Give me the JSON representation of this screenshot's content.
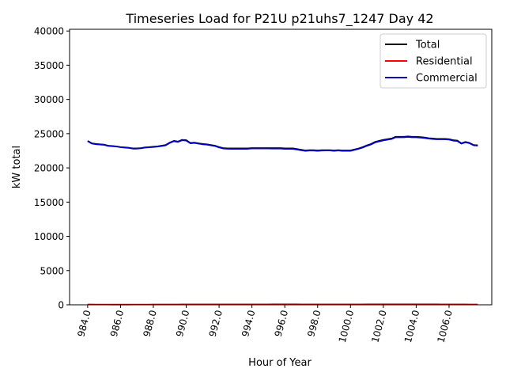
{
  "chart_data": {
    "type": "line",
    "title": "Timeseries Load for P21U p21uhs7_1247  Day 42",
    "xlabel": "Hour of Year",
    "ylabel": "kW total",
    "xlim": [
      982.9,
      1008.6
    ],
    "ylim": [
      0,
      40250
    ],
    "xticks": [
      984,
      986,
      988,
      990,
      992,
      994,
      996,
      998,
      1000,
      1002,
      1004,
      1006
    ],
    "xtick_labels": [
      "984.0",
      "986.0",
      "988.0",
      "990.0",
      "992.0",
      "994.0",
      "996.0",
      "998.0",
      "1000.0",
      "1002.0",
      "1004.0",
      "1006.0"
    ],
    "yticks": [
      0,
      5000,
      10000,
      15000,
      20000,
      25000,
      30000,
      35000,
      40000
    ],
    "ytick_labels": [
      "0",
      "5000",
      "10000",
      "15000",
      "20000",
      "25000",
      "30000",
      "35000",
      "40000"
    ],
    "legend_position": "top-right",
    "x": [
      984.0,
      984.25,
      984.5,
      984.75,
      985.0,
      985.25,
      985.5,
      985.75,
      986.0,
      986.25,
      986.5,
      986.75,
      987.0,
      987.25,
      987.5,
      987.75,
      988.0,
      988.25,
      988.5,
      988.75,
      989.0,
      989.25,
      989.5,
      989.75,
      990.0,
      990.25,
      990.5,
      990.75,
      991.0,
      991.25,
      991.5,
      991.75,
      992.0,
      992.25,
      992.5,
      992.75,
      993.0,
      993.25,
      993.5,
      993.75,
      994.0,
      994.25,
      994.5,
      994.75,
      995.0,
      995.25,
      995.5,
      995.75,
      996.0,
      996.25,
      996.5,
      996.75,
      997.0,
      997.25,
      997.5,
      997.75,
      998.0,
      998.25,
      998.5,
      998.75,
      999.0,
      999.25,
      999.5,
      999.75,
      1000.0,
      1000.25,
      1000.5,
      1000.75,
      1001.0,
      1001.25,
      1001.5,
      1001.75,
      1002.0,
      1002.25,
      1002.5,
      1002.75,
      1003.0,
      1003.25,
      1003.5,
      1003.75,
      1004.0,
      1004.25,
      1004.5,
      1004.75,
      1005.0,
      1005.25,
      1005.5,
      1005.75,
      1006.0,
      1006.25,
      1006.5,
      1006.75,
      1007.0,
      1007.25,
      1007.5,
      1007.75
    ],
    "series": [
      {
        "name": "Total",
        "color": "#000000",
        "values": [
          23950,
          23600,
          23500,
          23450,
          23400,
          23250,
          23200,
          23150,
          23050,
          23000,
          22950,
          22850,
          22850,
          22900,
          23000,
          23050,
          23100,
          23150,
          23250,
          23350,
          23700,
          23950,
          23850,
          24100,
          24050,
          23650,
          23700,
          23600,
          23500,
          23450,
          23350,
          23250,
          23050,
          22900,
          22850,
          22850,
          22850,
          22850,
          22850,
          22850,
          22900,
          22900,
          22900,
          22900,
          22900,
          22900,
          22900,
          22900,
          22850,
          22850,
          22850,
          22750,
          22650,
          22550,
          22600,
          22600,
          22550,
          22600,
          22600,
          22600,
          22550,
          22600,
          22550,
          22550,
          22550,
          22700,
          22850,
          23050,
          23300,
          23500,
          23800,
          23950,
          24100,
          24200,
          24300,
          24550,
          24550,
          24550,
          24600,
          24550,
          24550,
          24500,
          24450,
          24350,
          24300,
          24250,
          24250,
          24250,
          24200,
          24050,
          24000,
          23600,
          23800,
          23650,
          23350,
          23300
        ]
      },
      {
        "name": "Residential",
        "color": "#ff0000",
        "values": [
          55,
          50,
          45,
          42,
          40,
          40,
          38,
          38,
          38,
          38,
          38,
          40,
          40,
          40,
          42,
          45,
          48,
          50,
          52,
          55,
          58,
          60,
          60,
          62,
          62,
          62,
          62,
          62,
          62,
          62,
          62,
          62,
          62,
          65,
          68,
          70,
          70,
          70,
          70,
          70,
          72,
          72,
          75,
          75,
          75,
          78,
          78,
          80,
          80,
          82,
          80,
          78,
          75,
          72,
          70,
          70,
          68,
          68,
          65,
          65,
          65,
          65,
          65,
          65,
          68,
          70,
          72,
          75,
          78,
          80,
          80,
          80,
          82,
          82,
          82,
          82,
          80,
          80,
          80,
          80,
          80,
          80,
          80,
          78,
          78,
          78,
          75,
          75,
          72,
          70,
          68,
          65,
          62,
          60,
          58,
          55
        ]
      },
      {
        "name": "Commercial",
        "color": "#0000cc",
        "values": [
          23895,
          23550,
          23455,
          23408,
          23360,
          23210,
          23162,
          23112,
          23012,
          22962,
          22912,
          22810,
          22810,
          22860,
          22958,
          23005,
          23052,
          23100,
          23198,
          23295,
          23642,
          23890,
          23790,
          24038,
          23988,
          23588,
          23638,
          23538,
          23438,
          23388,
          23288,
          23188,
          22988,
          22835,
          22782,
          22780,
          22780,
          22780,
          22780,
          22780,
          22828,
          22828,
          22825,
          22825,
          22825,
          22822,
          22822,
          22820,
          22770,
          22768,
          22770,
          22672,
          22575,
          22478,
          22530,
          22530,
          22482,
          22532,
          22535,
          22535,
          22485,
          22535,
          22485,
          22485,
          22482,
          22630,
          22778,
          22975,
          23222,
          23420,
          23720,
          23870,
          24018,
          24118,
          24218,
          24468,
          24470,
          24470,
          24520,
          24470,
          24470,
          24420,
          24370,
          24272,
          24222,
          24172,
          24175,
          24175,
          24128,
          23980,
          23932,
          23535,
          23738,
          23590,
          23292,
          23245
        ]
      }
    ]
  }
}
